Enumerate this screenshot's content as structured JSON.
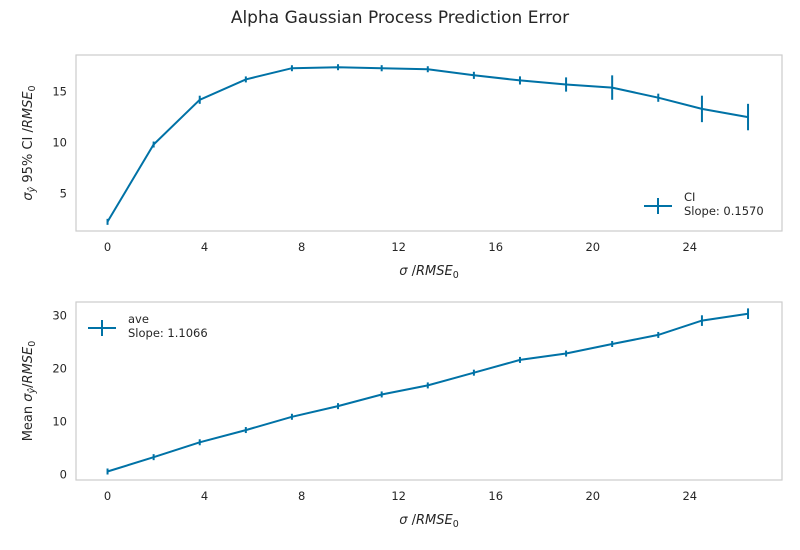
{
  "figure": {
    "title": "Alpha Gaussian Process Prediction Error",
    "line_color": "#0072a6",
    "frame_color": "#cccccc"
  },
  "chart_data": [
    {
      "type": "line",
      "xlabel": "σ /RMSE₀",
      "ylabel": "σŷ 95% CI /RMSE₀",
      "xlim": [
        -1.3,
        27.8
      ],
      "ylim": [
        1.3,
        18.6
      ],
      "xticks": [
        0,
        4,
        8,
        12,
        16,
        20,
        24
      ],
      "yticks": [
        5,
        10,
        15
      ],
      "legend": {
        "position": "lower-right",
        "name": "CI",
        "slope_text": "Slope: 0.1570"
      },
      "series": [
        {
          "name": "CI",
          "x": [
            0.0,
            1.9,
            3.8,
            5.7,
            7.6,
            9.5,
            11.3,
            13.2,
            15.1,
            17.0,
            18.9,
            20.8,
            22.7,
            24.5,
            26.4
          ],
          "y": [
            2.2,
            9.8,
            14.2,
            16.2,
            17.3,
            17.4,
            17.3,
            17.2,
            16.6,
            16.1,
            15.7,
            15.4,
            14.4,
            13.3,
            12.5
          ],
          "yerr": [
            0.1,
            0.2,
            0.4,
            0.1,
            0.1,
            0.15,
            0.3,
            0.2,
            0.35,
            0.4,
            0.7,
            1.2,
            0.4,
            1.3,
            1.3
          ]
        }
      ]
    },
    {
      "type": "line",
      "xlabel": "σ /RMSE₀",
      "ylabel": "Mean σŷ/RMSE₀",
      "xlim": [
        -1.3,
        27.8
      ],
      "ylim": [
        -1.0,
        32.5
      ],
      "xticks": [
        0,
        4,
        8,
        12,
        16,
        20,
        24
      ],
      "yticks": [
        0,
        10,
        20,
        30
      ],
      "legend": {
        "position": "upper-left",
        "name": "ave",
        "slope_text": "Slope: 1.1066"
      },
      "series": [
        {
          "name": "ave",
          "x": [
            0.0,
            1.9,
            3.8,
            5.7,
            7.6,
            9.5,
            11.3,
            13.2,
            15.1,
            17.0,
            18.9,
            20.8,
            22.7,
            24.5,
            26.4
          ],
          "y": [
            0.6,
            3.3,
            6.1,
            8.4,
            10.9,
            12.9,
            15.1,
            16.8,
            19.2,
            21.6,
            22.8,
            24.6,
            26.3,
            29.0,
            30.3
          ],
          "yerr": [
            0.1,
            0.15,
            0.4,
            0.2,
            0.3,
            0.4,
            0.4,
            0.2,
            0.2,
            0.3,
            0.4,
            0.3,
            0.3,
            1.0,
            1.0
          ]
        }
      ]
    }
  ]
}
